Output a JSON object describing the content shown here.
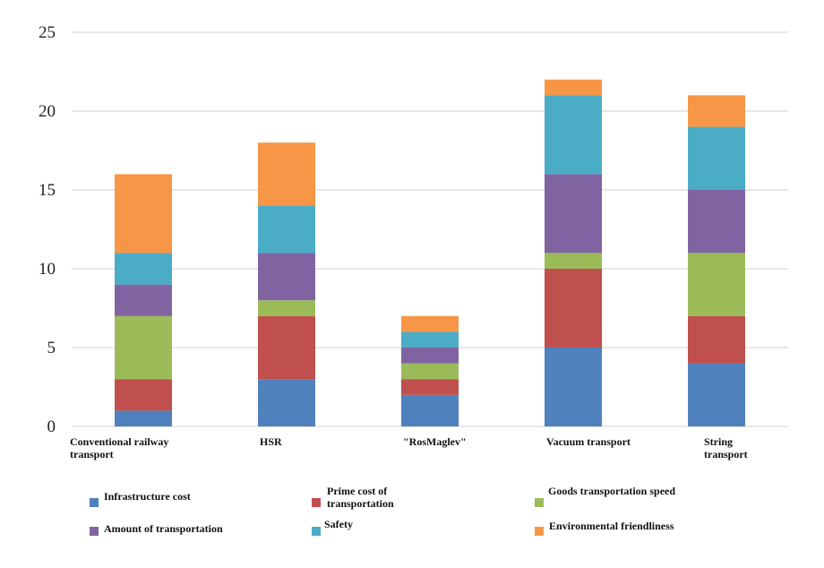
{
  "chart_data": {
    "type": "bar",
    "stacked": true,
    "title": "",
    "xlabel": "",
    "ylabel": "",
    "ylim": [
      0,
      25
    ],
    "yticks": [
      0,
      5,
      10,
      15,
      20,
      25
    ],
    "grid": true,
    "legend_position": "bottom",
    "categories": [
      "Conventional railway transport",
      "HSR",
      "\"RosMaglev\"",
      "Vacuum transport",
      "String transport"
    ],
    "category_label_lines": [
      [
        "Conventional railway",
        "transport"
      ],
      [
        "HSR"
      ],
      [
        "\"RosMaglev\""
      ],
      [
        "Vacuum transport"
      ],
      [
        "String",
        "transport"
      ]
    ],
    "series": [
      {
        "name": "Infrastructure cost",
        "color": "#4F81BD",
        "values": [
          1,
          3,
          2,
          5,
          4
        ]
      },
      {
        "name": "Prime cost of transportation",
        "color": "#C0504D",
        "values": [
          2,
          4,
          1,
          5,
          3
        ]
      },
      {
        "name": "Goods transportation speed",
        "color": "#9BBB59",
        "values": [
          4,
          1,
          1,
          1,
          4
        ]
      },
      {
        "name": "Amount of transportation",
        "color": "#8064A2",
        "values": [
          2,
          3,
          1,
          5,
          4
        ]
      },
      {
        "name": "Safety",
        "color": "#4BACC6",
        "values": [
          2,
          3,
          1,
          5,
          4
        ]
      },
      {
        "name": "Environmental friendliness",
        "color": "#F79646",
        "values": [
          5,
          4,
          1,
          1,
          2
        ]
      }
    ],
    "totals": [
      16,
      18,
      7,
      22,
      21
    ]
  },
  "legend": {
    "items": [
      {
        "label_lines": [
          "Infrastructure cost"
        ],
        "color": "#4F81BD"
      },
      {
        "label_lines": [
          "Prime cost of",
          "transportation"
        ],
        "color": "#C0504D"
      },
      {
        "label_lines": [
          "Goods transportation speed"
        ],
        "color": "#9BBB59"
      },
      {
        "label_lines": [
          "Amount of transportation"
        ],
        "color": "#8064A2"
      },
      {
        "label_lines": [
          "Safety"
        ],
        "color": "#4BACC6"
      },
      {
        "label_lines": [
          "Environmental friendliness"
        ],
        "color": "#F79646"
      }
    ]
  },
  "colors": {
    "grid": "#D9D9D9",
    "text": "#222222"
  }
}
